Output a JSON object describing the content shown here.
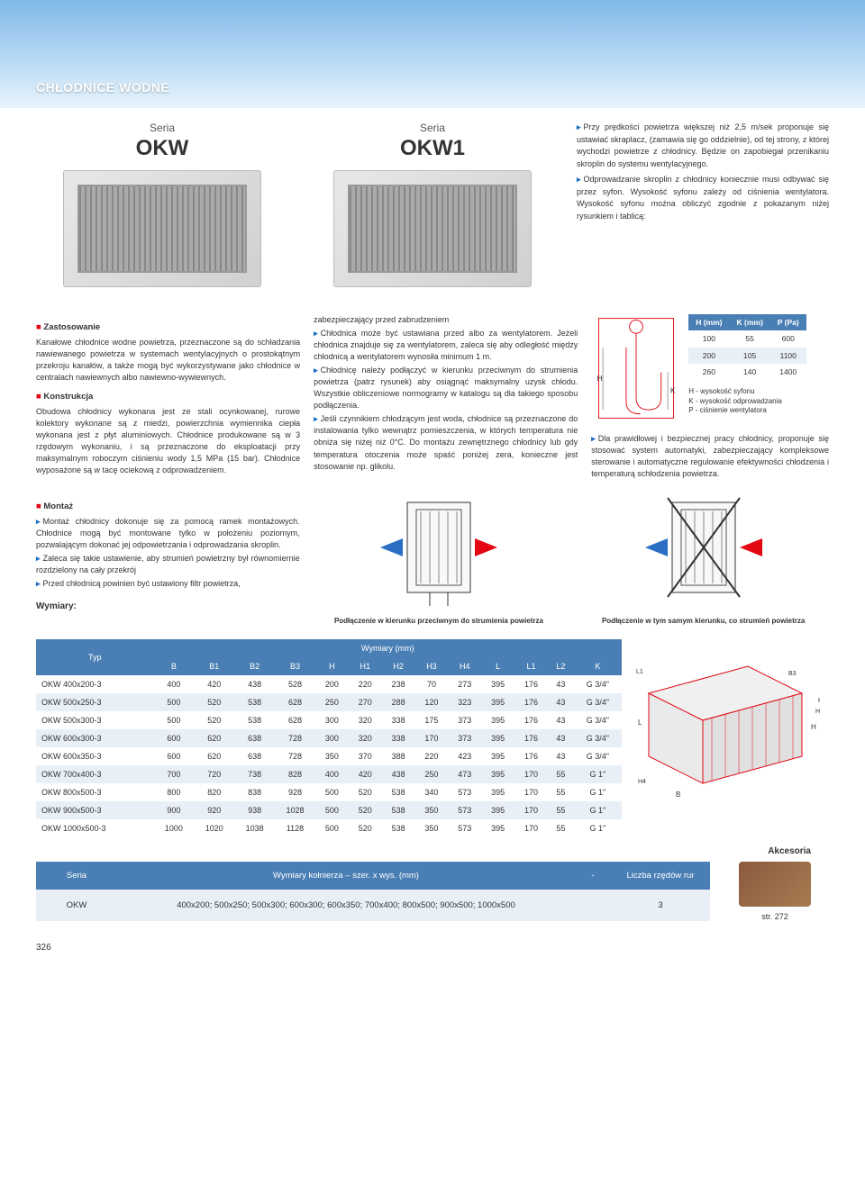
{
  "header": {
    "title": "CHŁODNICE WODNE"
  },
  "products": {
    "label": "Seria",
    "left": "OKW",
    "right": "OKW1"
  },
  "intro": {
    "p1": "Przy prędkości powietrza większej niż 2,5 m/sek proponuje się ustawiać skraplacz, (zamawia się go oddzielnie), od tej strony, z której wychodzi powietrze z chłodnicy. Będzie on zapobiegał przenikaniu skroplin do systemu wentylacyjnego.",
    "p2": "Odprowadzanie skroplin z chłodnicy koniecznie musi odbywać się przez syfon. Wysokość syfonu zależy od ciśnienia wentylatora. Wysokość syfonu można obliczyć zgodnie z pokazanym niżej rysunkiem i tablicą:"
  },
  "sections": {
    "zastosowanie": {
      "title": "Zastosowanie",
      "body": "Kanałowe chłodnice wodne powietrza, przeznaczone są do schładzania nawiewanego powietrza w systemach wentylacyjnych o prostokątnym przekroju kanałów, a także mogą być wykorzystywane jako chłodnice w centralach nawiewnych albo nawiewno-wywiewnych."
    },
    "konstrukcja": {
      "title": "Konstrukcja",
      "body": "Obudowa chłodnicy wykonana jest ze stali ocynkowanej, rurowe kolektory wykonane są z miedzi, powierzchnia wymiennika ciepła wykonana jest z płyt aluminiowych. Chłodnice produkowane są w 3 rzędowym wykonaniu, i są przeznaczone do eksploatacji przy maksymalnym roboczym ciśnieniu wody 1,5 MPa (15 bar). Chłodnice wyposażone są w tacę ociekową z odprowadzeniem."
    },
    "montaz": {
      "title": "Montaż",
      "b1": "Montaż chłodnicy dokonuje się za pomocą ramek montażowych. Chłodnice mogą być montowane tylko w położeniu poziomym, pozwalającym dokonać jej odpowietrzania i odprowadzania skroplin.",
      "b2": "Zaleca się takie ustawienie, aby strumień powietrzny był równomiernie rozdzielony na cały przekrój",
      "b3": "Przed chłodnicą powinien być ustawiony filtr powietrza,"
    },
    "col2": {
      "p0": "zabezpieczający przed zabrudzeniem",
      "p1": "Chłodnica może być ustawiana przed albo za wentylatorem. Jeżeli chłodnica znajduje się za wentylatorem, zaleca się aby odległość między chłodnicą a wentylatorem wynosiła minimum 1 m.",
      "p2": "Chłodnicę należy podłączyć w kierunku przeciwnym do strumienia powietrza (patrz rysunek) aby osiągnąć maksymalny uzysk chłodu. Wszystkie obliczeniowe normogramy w katalogu są dla takiego sposobu podłączenia.",
      "p3": "Jeśli czynnikiem chłodzącym jest woda, chłodnice są przeznaczone do instalowania tylko wewnątrz pomieszczenia, w których temperatura nie obniża się niżej niż 0°C. Do montażu zewnętrznego chłodnicy lub gdy temperatura otoczenia może spaść poniżej zera, konieczne jest stosowanie np. glikolu."
    },
    "col3": {
      "p1": "Dla prawidłowej i bezpiecznej pracy chłodnicy, proponuje się stosować system automatyki, zabezpieczający kompleksowe sterowanie i automatyczne regulowanie efektywności chłodzenia i temperaturą schłodzenia powietrza."
    }
  },
  "siphon": {
    "headers": [
      "H (mm)",
      "K (mm)",
      "P (Pa)"
    ],
    "rows": [
      [
        100,
        55,
        600
      ],
      [
        200,
        105,
        1100
      ],
      [
        260,
        140,
        1400
      ]
    ],
    "legend": {
      "h": "H - wysokość syfonu",
      "k": "K - wysokość odprowadzania",
      "p": "P - ciśnienie wentylatora"
    },
    "labels": {
      "h": "H",
      "k": "K"
    }
  },
  "diag": {
    "cap1": "Podłączenie w kierunku przeciwnym do strumienia powietrza",
    "cap2": "Podłączenie w tym samym kierunku, co strumień powietrza"
  },
  "wymiary_label": "Wymiary:",
  "dims": {
    "typ_header": "Typ",
    "group_header": "Wymiary (mm)",
    "cols": [
      "B",
      "B1",
      "B2",
      "B3",
      "H",
      "H1",
      "H2",
      "H3",
      "H4",
      "L",
      "L1",
      "L2",
      "K"
    ],
    "rows": [
      {
        "typ": "OKW 400x200-3",
        "v": [
          400,
          420,
          438,
          528,
          200,
          220,
          238,
          70,
          273,
          395,
          176,
          43,
          "G 3/4\""
        ]
      },
      {
        "typ": "OKW 500x250-3",
        "v": [
          500,
          520,
          538,
          628,
          250,
          270,
          288,
          120,
          323,
          395,
          176,
          43,
          "G 3/4\""
        ]
      },
      {
        "typ": "OKW 500x300-3",
        "v": [
          500,
          520,
          538,
          628,
          300,
          320,
          338,
          175,
          373,
          395,
          176,
          43,
          "G 3/4\""
        ]
      },
      {
        "typ": "OKW 600x300-3",
        "v": [
          600,
          620,
          638,
          728,
          300,
          320,
          338,
          170,
          373,
          395,
          176,
          43,
          "G 3/4\""
        ]
      },
      {
        "typ": "OKW 600x350-3",
        "v": [
          600,
          620,
          638,
          728,
          350,
          370,
          388,
          220,
          423,
          395,
          176,
          43,
          "G 3/4\""
        ]
      },
      {
        "typ": "OKW 700x400-3",
        "v": [
          700,
          720,
          738,
          828,
          400,
          420,
          438,
          250,
          473,
          395,
          170,
          55,
          "G 1\""
        ]
      },
      {
        "typ": "OKW 800x500-3",
        "v": [
          800,
          820,
          838,
          928,
          500,
          520,
          538,
          340,
          573,
          395,
          170,
          55,
          "G 1\""
        ]
      },
      {
        "typ": "OKW 900x500-3",
        "v": [
          900,
          920,
          938,
          1028,
          500,
          520,
          538,
          350,
          573,
          395,
          170,
          55,
          "G 1\""
        ]
      },
      {
        "typ": "OKW 1000x500-3",
        "v": [
          1000,
          1020,
          1038,
          1128,
          500,
          520,
          538,
          350,
          573,
          395,
          170,
          55,
          "G 1\""
        ]
      }
    ]
  },
  "accessories_label": "Akcesoria",
  "series": {
    "headers": [
      "Seria",
      "Wymiary kołnierza – szer. x wys. (mm)",
      "-",
      "Liczba rzędów rur"
    ],
    "row": {
      "seria": "OKW",
      "wymiary": "400x200; 500x250; 500x300; 600x300; 600x350; 700x400; 800x500; 900x500; 1000x500",
      "dash": "",
      "liczba": "3"
    }
  },
  "acc_ref": "str. 272",
  "pagenum": "326",
  "colors": {
    "header_th": "#4a7fb5",
    "row_alt": "#e8eff6",
    "red_sq": "#e30613",
    "blue_arrow": "#1a6fc4"
  }
}
